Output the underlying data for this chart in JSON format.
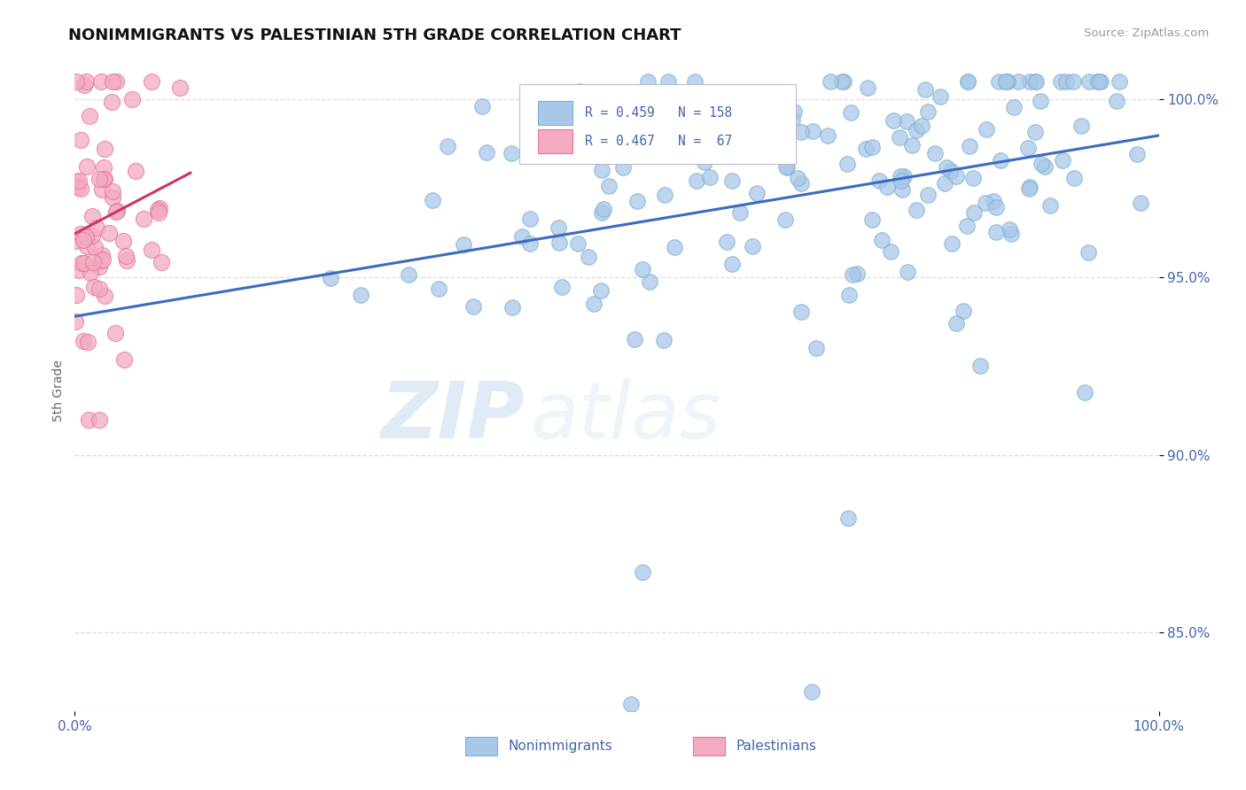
{
  "title": "NONIMMIGRANTS VS PALESTINIAN 5TH GRADE CORRELATION CHART",
  "source": "Source: ZipAtlas.com",
  "ylabel": "5th Grade",
  "xlim": [
    0.0,
    1.0
  ],
  "ylim": [
    0.828,
    1.008
  ],
  "yticks": [
    0.85,
    0.9,
    0.95,
    1.0
  ],
  "ytick_labels": [
    "85.0%",
    "90.0%",
    "95.0%",
    "100.0%"
  ],
  "blue_color": "#A8C8E8",
  "blue_edge": "#7BAFD4",
  "pink_color": "#F4AABF",
  "pink_edge": "#E07898",
  "line_blue": "#3B6BBF",
  "line_pink": "#CC3366",
  "legend_R1": "0.459",
  "legend_N1": "158",
  "legend_R2": "0.467",
  "legend_N2": " 67",
  "legend_label1": "Nonimmigrants",
  "legend_label2": "Palestinians",
  "watermark_zip": "ZIP",
  "watermark_atlas": "atlas",
  "title_color": "#111111",
  "tick_color": "#4466AA",
  "background_color": "#FFFFFF",
  "grid_color": "#DDDDDD",
  "blue_N": 158,
  "pink_N": 67
}
